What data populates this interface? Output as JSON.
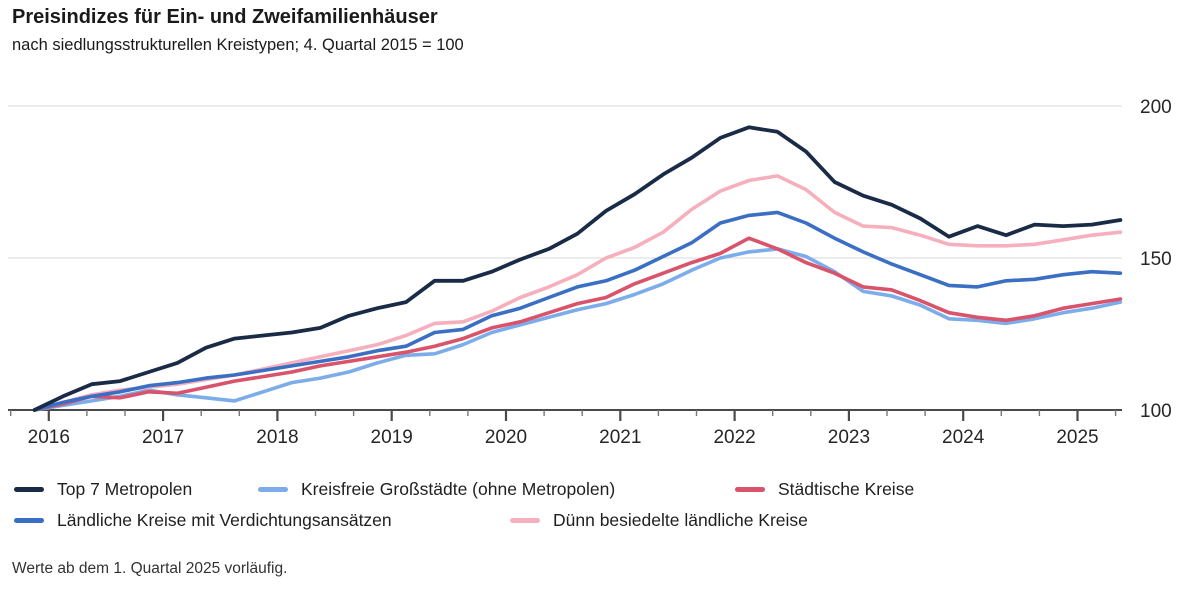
{
  "header": {
    "title": "Preisindizes für Ein- und Zweifamilienhäuser",
    "subtitle": "nach siedlungsstrukturellen Kreistypen; 4. Quartal 2015 = 100"
  },
  "footnote": "Werte ab dem 1. Quartal 2025 vorläufig.",
  "chart_data": {
    "type": "line",
    "title": "Preisindizes für Ein- und Zweifamilienhäuser",
    "subtitle": "nach siedlungsstrukturellen Kreistypen; 4. Quartal 2015 = 100",
    "baseline_note": "4. Quartal 2015 = 100",
    "x": {
      "frequency": "quarterly",
      "start": "2015-Q4",
      "end": "2025-Q2",
      "tick_years": [
        2016,
        2017,
        2018,
        2019,
        2020,
        2021,
        2022,
        2023,
        2024,
        2025
      ],
      "minor_ticks_per_year": 3
    },
    "y": {
      "min": 100,
      "max": 200,
      "ticks": [
        100,
        150,
        200
      ],
      "label_side": "right",
      "grid": true
    },
    "legend_position": "bottom",
    "axis_color": "#4a4a4a",
    "grid_color": "#d9d9d9",
    "series": [
      {
        "name": "Top 7 Metropolen",
        "color": "#1a2b47",
        "values": [
          100,
          104.5,
          108.5,
          109.5,
          112.5,
          115.5,
          120.5,
          123.5,
          124.5,
          125.5,
          127,
          131,
          133.5,
          135.5,
          142.5,
          142.5,
          145.5,
          149.5,
          153,
          158,
          165.5,
          171,
          177.5,
          183,
          189.5,
          193,
          191.5,
          185,
          175,
          170.5,
          167.5,
          163,
          157,
          160.5,
          157.5,
          161,
          160.5,
          161,
          162.5
        ]
      },
      {
        "name": "Kreisfreie Großstädte (ohne Metropolen)",
        "color": "#7cadea",
        "values": [
          100,
          101.5,
          103,
          104.5,
          106.5,
          105,
          104,
          103,
          106,
          109,
          110.5,
          112.5,
          115.5,
          118,
          118.5,
          121.5,
          125.5,
          128,
          130.5,
          133,
          135,
          138,
          141.5,
          146,
          150,
          152,
          153,
          150.5,
          145.5,
          139,
          137.5,
          134.5,
          130,
          129.5,
          128.5,
          130,
          132,
          133.5,
          135.5
        ]
      },
      {
        "name": "Städtische Kreise",
        "color": "#d9536b",
        "values": [
          100,
          102,
          104.5,
          104,
          106,
          105.5,
          107.5,
          109.5,
          111,
          112.5,
          114.5,
          116,
          117.5,
          119,
          121,
          123.5,
          127,
          129,
          132,
          135,
          137,
          141.5,
          145,
          148.5,
          151.5,
          156.5,
          153,
          148.5,
          145,
          140.5,
          139.5,
          136,
          132,
          130.5,
          129.5,
          131,
          133.5,
          135,
          136.5
        ]
      },
      {
        "name": "Ländliche Kreise mit Verdichtungsansätzen",
        "color": "#3a6fc4",
        "values": [
          100,
          102.5,
          104.5,
          106,
          108,
          109,
          110.5,
          111.5,
          113,
          114.5,
          116,
          117.5,
          119.5,
          121,
          125.5,
          126.5,
          131,
          133.5,
          137,
          140.5,
          142.5,
          146,
          150.5,
          155,
          161.5,
          164,
          165,
          161.5,
          156.5,
          152,
          148,
          144.5,
          141,
          140.5,
          142.5,
          143,
          144.5,
          145.5,
          145
        ]
      },
      {
        "name": "Dünn besiedelte ländliche Kreise",
        "color": "#f6afbc",
        "values": [
          100,
          102.5,
          105,
          106.5,
          107.5,
          108.5,
          110,
          111.5,
          113.5,
          115.5,
          117.5,
          119.5,
          121.5,
          124.5,
          128.5,
          129,
          132.5,
          137,
          140.5,
          144.5,
          150,
          153.5,
          158.5,
          166,
          172,
          175.5,
          177,
          172.5,
          165,
          160.5,
          160,
          157.5,
          154.5,
          154,
          154,
          154.5,
          156,
          157.5,
          158.5
        ]
      }
    ]
  }
}
